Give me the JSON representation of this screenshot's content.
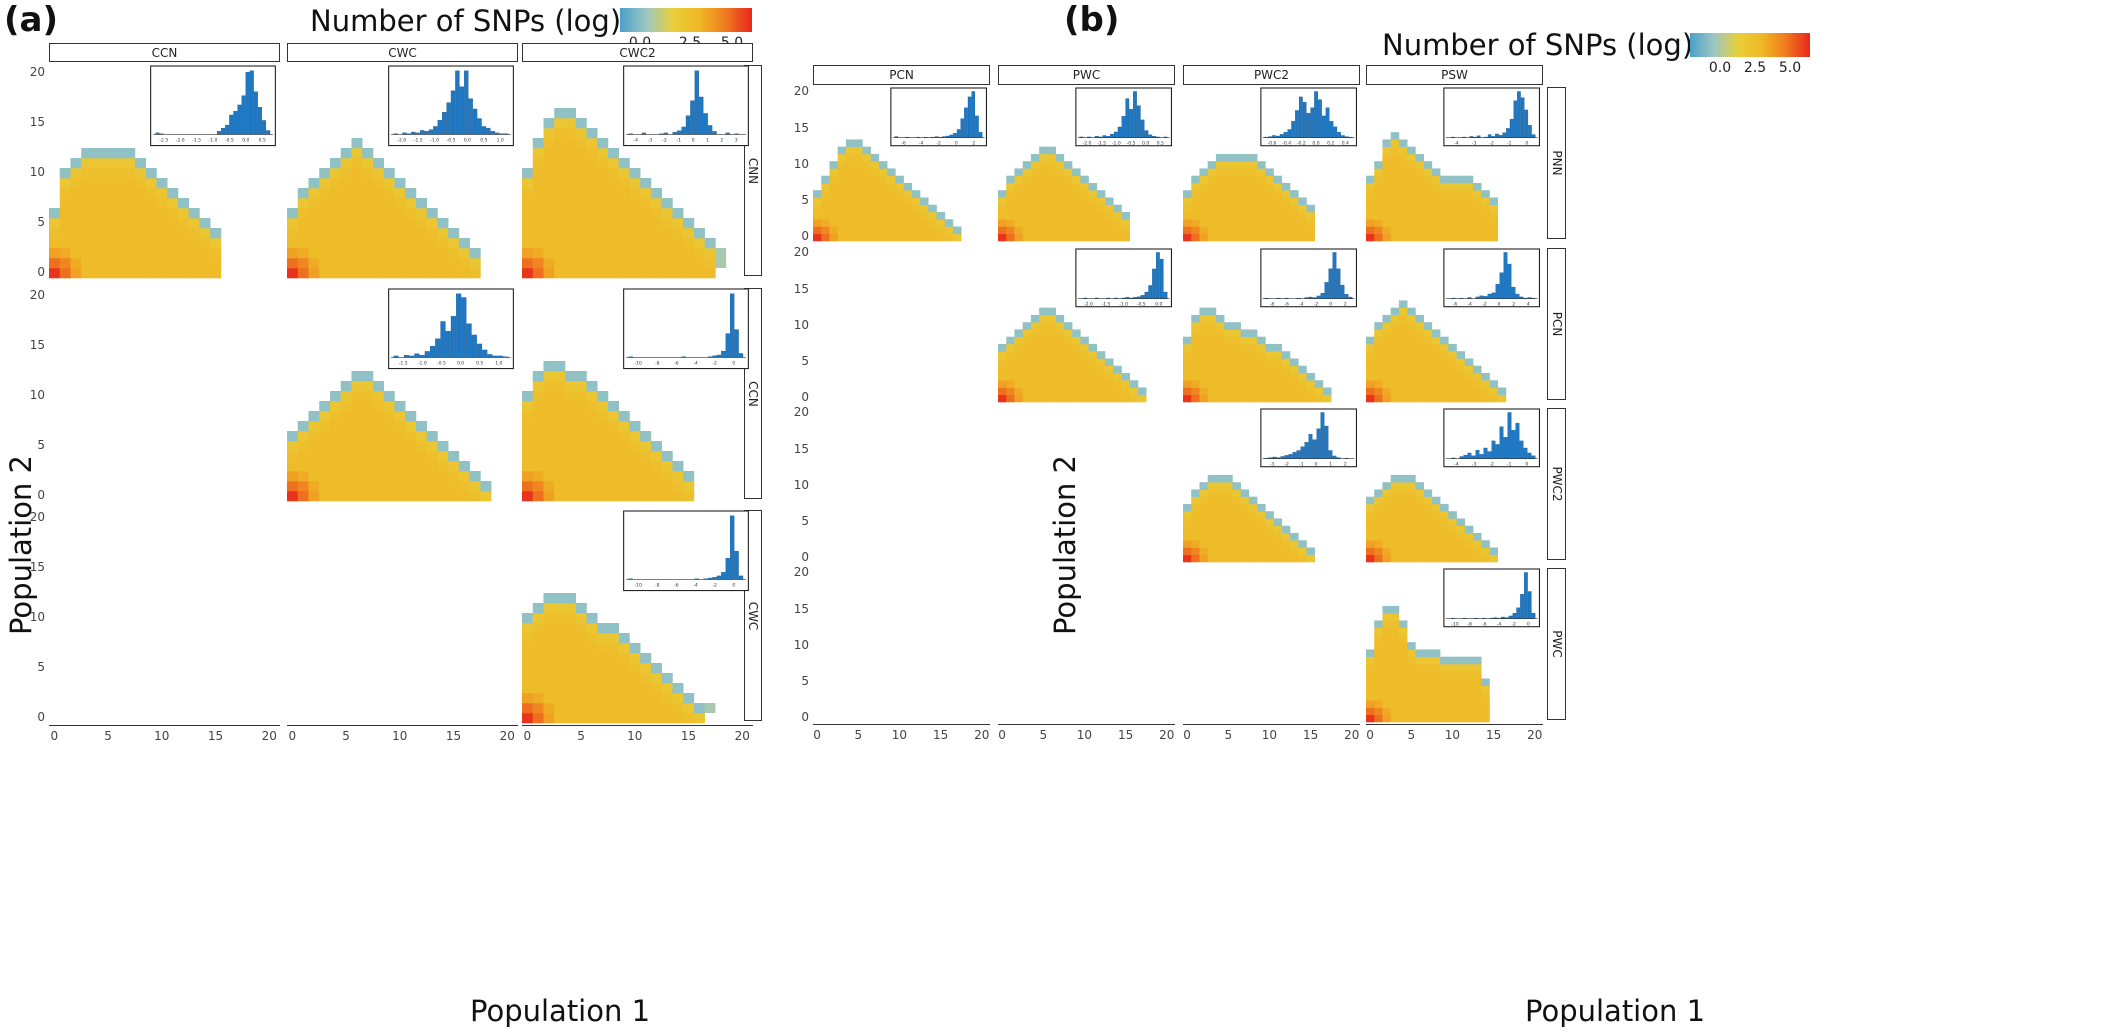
{
  "figure": {
    "panels": [
      {
        "label": "(a)",
        "legend": {
          "title": "Number of SNPs (log)",
          "ticks": [
            "0.0",
            "2.5",
            "5.0"
          ]
        },
        "x_axis_title": "Population 1",
        "y_axis_title": "Population 2",
        "columns": [
          "CCN",
          "CWC",
          "CWC2"
        ],
        "rows": [
          "CNN",
          "CCN",
          "CWC"
        ]
      },
      {
        "label": "(b)",
        "legend": {
          "title": "Number of SNPs (log)",
          "ticks": [
            "0.0",
            "2.5",
            "5.0"
          ]
        },
        "x_axis_title": "Population 1",
        "y_axis_title": "Population 2",
        "columns": [
          "PCN",
          "PWC",
          "PWC2",
          "PSW"
        ],
        "rows": [
          "PNN",
          "PCN",
          "PWC2",
          "PWC"
        ]
      }
    ]
  },
  "chart_data": [
    {
      "type": "heatmap",
      "panel": "(a)",
      "title": "",
      "xlabel": "Population 1",
      "ylabel": "Population 2",
      "colorbar": {
        "label": "Number of SNPs (log)",
        "range": [
          -0.5,
          6.0
        ],
        "ticks": [
          0.0,
          2.5,
          5.0
        ],
        "colors": [
          "#4aa0c8",
          "#9cc7c4",
          "#e8cf3a",
          "#f0b826",
          "#ef7a1e",
          "#e8261c"
        ]
      },
      "xlim": [
        -0.5,
        21
      ],
      "ylim": [
        -0.5,
        21
      ],
      "x_ticks": [
        0,
        5,
        10,
        15,
        20
      ],
      "y_ticks": [
        0,
        5,
        10,
        15,
        20
      ],
      "facets": [
        {
          "col": "CCN",
          "row": "CNN",
          "col_heights": [
            7,
            11,
            12,
            13,
            13,
            13,
            13,
            13,
            12,
            11,
            10,
            9,
            8,
            7,
            6,
            5
          ],
          "outliers": [],
          "inset_hist": {
            "heights": [
              2,
              1,
              0,
              0,
              0,
              0,
              0,
              0,
              0,
              0,
              0,
              0,
              0,
              0,
              0,
              4,
              8,
              12,
              25,
              30,
              38,
              50,
              80,
              82,
              55,
              35,
              18,
              5
            ],
            "tick_labels": [
              "-2.5",
              "-2.0",
              "-1.5",
              "-1.0",
              "-0.5",
              "0.0",
              "0.5"
            ]
          }
        },
        {
          "col": "CWC",
          "row": "CNN",
          "col_heights": [
            7,
            9,
            10,
            11,
            12,
            13,
            14,
            13,
            12,
            11,
            10,
            9,
            8,
            7,
            6,
            5,
            4,
            3
          ],
          "outliers": [],
          "inset_hist": {
            "heights": [
              1,
              0,
              2,
              1,
              3,
              2,
              5,
              4,
              6,
              10,
              18,
              28,
              40,
              55,
              80,
              60,
              80,
              45,
              32,
              20,
              10,
              8,
              4,
              2,
              1,
              1
            ],
            "tick_labels": [
              "-2.0",
              "-1.5",
              "-1.0",
              "-0.5",
              "0.0",
              "0.5",
              "1.0"
            ]
          }
        },
        {
          "col": "CWC2",
          "row": "CNN",
          "col_heights": [
            11,
            14,
            16,
            17,
            17,
            16,
            15,
            14,
            13,
            12,
            11,
            10,
            9,
            8,
            7,
            6,
            5,
            4
          ],
          "outliers": [
            [
              18,
              2
            ],
            [
              18,
              1
            ]
          ],
          "inset_hist": {
            "heights": [
              1,
              0,
              0,
              2,
              0,
              0,
              0,
              1,
              2,
              0,
              3,
              5,
              10,
              25,
              45,
              85,
              50,
              28,
              12,
              4,
              0,
              0,
              2,
              0,
              1,
              0
            ],
            "tick_labels": [
              "-4",
              "-3",
              "-2",
              "-1",
              "0",
              "1",
              "2",
              "3"
            ]
          }
        },
        {
          "col": "CWC",
          "row": "CCN",
          "col_heights": [
            7,
            8,
            9,
            10,
            11,
            12,
            13,
            13,
            12,
            11,
            10,
            9,
            8,
            7,
            6,
            5,
            4,
            3,
            2
          ],
          "outliers": [],
          "inset_hist": {
            "heights": [
              2,
              0,
              3,
              2,
              5,
              3,
              8,
              15,
              25,
              48,
              35,
              55,
              85,
              80,
              45,
              30,
              18,
              10,
              4,
              2,
              2,
              1
            ],
            "tick_labels": [
              "-1.5",
              "-1.0",
              "-0.5",
              "0.0",
              "0.5",
              "1.0"
            ]
          }
        },
        {
          "col": "CWC2",
          "row": "CCN",
          "col_heights": [
            11,
            13,
            14,
            14,
            13,
            13,
            12,
            11,
            10,
            9,
            8,
            7,
            6,
            5,
            4,
            3
          ],
          "outliers": [],
          "inset_hist": {
            "heights": [
              1,
              0,
              0,
              0,
              0,
              0,
              0,
              0,
              0,
              0,
              0,
              0,
              1,
              0,
              0,
              0,
              0,
              0,
              1,
              2,
              3,
              8,
              30,
              80,
              35,
              5
            ],
            "tick_labels": [
              "-10",
              "-8",
              "-6",
              "-4",
              "-2",
              "0"
            ]
          }
        },
        {
          "col": "CWC2",
          "row": "CWC",
          "col_heights": [
            11,
            12,
            13,
            13,
            13,
            12,
            11,
            10,
            10,
            9,
            8,
            7,
            6,
            5,
            4,
            3,
            2
          ],
          "outliers": [
            [
              17,
              1
            ]
          ],
          "inset_hist": {
            "heights": [
              1,
              0,
              0,
              0,
              0,
              0,
              0,
              0,
              0,
              0,
              0,
              0,
              0,
              0,
              0,
              1,
              0,
              1,
              2,
              3,
              5,
              10,
              30,
              90,
              40,
              5
            ],
            "tick_labels": [
              "-10",
              "-8",
              "-6",
              "-4",
              "-2",
              "0"
            ]
          }
        }
      ]
    },
    {
      "type": "heatmap",
      "panel": "(b)",
      "title": "",
      "xlabel": "Population 1",
      "ylabel": "Population 2",
      "colorbar": {
        "label": "Number of SNPs (log)",
        "range": [
          -0.5,
          6.0
        ],
        "ticks": [
          0.0,
          2.5,
          5.0
        ],
        "colors": [
          "#4aa0c8",
          "#9cc7c4",
          "#e8cf3a",
          "#f0b826",
          "#ef7a1e",
          "#e8261c"
        ]
      },
      "xlim": [
        -0.5,
        21
      ],
      "ylim": [
        -0.5,
        21
      ],
      "x_ticks": [
        0,
        5,
        10,
        15,
        20
      ],
      "y_ticks": [
        0,
        5,
        10,
        15,
        20
      ],
      "facets": [
        {
          "col": "PCN",
          "row": "PNN",
          "col_heights": [
            7,
            9,
            11,
            13,
            14,
            14,
            13,
            12,
            11,
            10,
            9,
            8,
            7,
            6,
            5,
            4,
            3,
            2
          ],
          "outliers": [],
          "inset_hist": {
            "heights": [
              2,
              0,
              0,
              1,
              0,
              0,
              1,
              0,
              1,
              0,
              1,
              2,
              1,
              2,
              3,
              5,
              8,
              15,
              35,
              55,
              75,
              85,
              40,
              10
            ],
            "tick_labels": [
              "-6",
              "-4",
              "-2",
              "0",
              "2"
            ]
          }
        },
        {
          "col": "PWC",
          "row": "PNN",
          "col_heights": [
            7,
            9,
            10,
            11,
            12,
            13,
            13,
            12,
            11,
            10,
            9,
            8,
            7,
            6,
            5,
            4
          ],
          "outliers": [],
          "inset_hist": {
            "heights": [
              1,
              0,
              1,
              0,
              2,
              1,
              3,
              2,
              5,
              8,
              15,
              30,
              55,
              40,
              65,
              45,
              25,
              10,
              4,
              2,
              1,
              0,
              1
            ],
            "tick_labels": [
              "-2.0",
              "-1.5",
              "-1.0",
              "-0.5",
              "0.0",
              "0.5"
            ]
          }
        },
        {
          "col": "PWC2",
          "row": "PNN",
          "col_heights": [
            7,
            9,
            10,
            11,
            12,
            12,
            12,
            12,
            12,
            11,
            10,
            9,
            8,
            7,
            6,
            5
          ],
          "outliers": [],
          "inset_hist": {
            "heights": [
              1,
              2,
              4,
              3,
              6,
              10,
              15,
              30,
              50,
              75,
              65,
              45,
              55,
              85,
              70,
              40,
              55,
              30,
              20,
              10,
              4,
              2,
              1
            ],
            "tick_labels": [
              "-0.6",
              "-0.4",
              "-0.2",
              "0.0",
              "0.2",
              "0.4"
            ]
          }
        },
        {
          "col": "PSW",
          "row": "PNN",
          "col_heights": [
            9,
            11,
            14,
            15,
            14,
            13,
            12,
            11,
            10,
            9,
            9,
            9,
            9,
            8,
            7,
            6
          ],
          "outliers": [],
          "inset_hist": {
            "heights": [
              0,
              1,
              0,
              0,
              1,
              0,
              2,
              1,
              3,
              0,
              1,
              5,
              2,
              6,
              4,
              8,
              15,
              30,
              60,
              75,
              65,
              45,
              20,
              5
            ],
            "tick_labels": [
              "-4",
              "-3",
              "-2",
              "-1",
              "0"
            ]
          }
        },
        {
          "col": "PWC",
          "row": "PCN",
          "col_heights": [
            8,
            9,
            10,
            11,
            12,
            13,
            13,
            12,
            11,
            10,
            9,
            8,
            7,
            6,
            5,
            4,
            3,
            2
          ],
          "outliers": [],
          "inset_hist": {
            "heights": [
              0,
              1,
              0,
              0,
              1,
              0,
              0,
              1,
              0,
              1,
              0,
              1,
              2,
              1,
              2,
              3,
              5,
              10,
              20,
              45,
              70,
              60,
              10
            ],
            "tick_labels": [
              "-2.0",
              "-1.5",
              "-1.0",
              "-0.5",
              "0.0"
            ]
          }
        },
        {
          "col": "PWC2",
          "row": "PCN",
          "col_heights": [
            9,
            12,
            13,
            13,
            12,
            11,
            11,
            10,
            10,
            9,
            8,
            8,
            7,
            6,
            5,
            4,
            3,
            2
          ],
          "outliers": [],
          "inset_hist": {
            "heights": [
              1,
              0,
              0,
              1,
              0,
              1,
              0,
              0,
              1,
              0,
              2,
              3,
              2,
              5,
              10,
              30,
              55,
              85,
              55,
              25,
              8,
              3
            ],
            "tick_labels": [
              "-8",
              "-6",
              "-4",
              "-2",
              "0",
              "2"
            ]
          }
        },
        {
          "col": "PSW",
          "row": "PCN",
          "col_heights": [
            9,
            11,
            12,
            13,
            14,
            13,
            12,
            11,
            10,
            9,
            8,
            7,
            6,
            5,
            4,
            3,
            2
          ],
          "outliers": [],
          "inset_hist": {
            "heights": [
              0,
              1,
              0,
              1,
              0,
              2,
              0,
              3,
              5,
              4,
              8,
              10,
              25,
              45,
              80,
              60,
              20,
              8,
              3,
              1,
              2,
              1
            ],
            "tick_labels": [
              "-6",
              "-4",
              "-2",
              "0",
              "2",
              "4"
            ]
          }
        },
        {
          "col": "PWC2",
          "row": "PWC2",
          "col_heights": [
            8,
            10,
            11,
            12,
            12,
            12,
            11,
            10,
            9,
            8,
            7,
            6,
            5,
            4,
            3,
            2
          ],
          "outliers": [],
          "inset_hist": {
            "heights": [
              1,
              2,
              3,
              2,
              4,
              6,
              8,
              12,
              15,
              22,
              30,
              45,
              35,
              55,
              85,
              60,
              15,
              5,
              2,
              0,
              1,
              0
            ],
            "tick_labels": [
              "-3",
              "-2",
              "-1",
              "0",
              "1",
              "2"
            ]
          }
        },
        {
          "col": "PSW",
          "row": "PWC2",
          "col_heights": [
            9,
            10,
            11,
            12,
            12,
            12,
            11,
            10,
            9,
            8,
            7,
            6,
            5,
            4,
            3,
            2
          ],
          "outliers": [],
          "inset_hist": {
            "heights": [
              0,
              1,
              0,
              3,
              5,
              8,
              4,
              12,
              6,
              15,
              10,
              25,
              20,
              45,
              30,
              65,
              40,
              50,
              25,
              15,
              8,
              4
            ],
            "tick_labels": [
              "-4",
              "-3",
              "-2",
              "-1",
              "0"
            ]
          }
        },
        {
          "col": "PSW",
          "row": "PWC",
          "col_heights": [
            10,
            14,
            16,
            16,
            14,
            11,
            10,
            10,
            10,
            9,
            9,
            9,
            9,
            9,
            6
          ],
          "outliers": [],
          "inset_hist": {
            "heights": [
              0,
              1,
              0,
              0,
              1,
              0,
              0,
              1,
              0,
              1,
              0,
              1,
              2,
              1,
              3,
              2,
              5,
              10,
              20,
              45,
              85,
              50,
              10
            ],
            "tick_labels": [
              "-10",
              "-8",
              "-6",
              "-4",
              "-2",
              "0"
            ]
          }
        }
      ]
    }
  ]
}
